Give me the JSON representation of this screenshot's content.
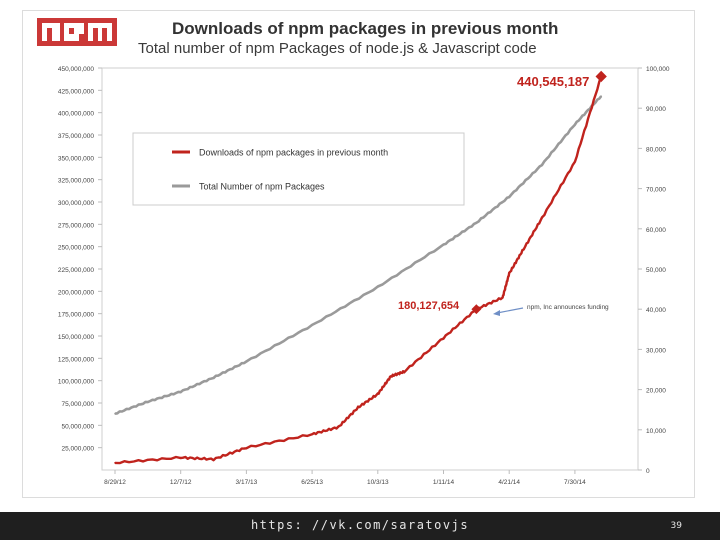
{
  "slide": {
    "logo_text": "npm",
    "url": "https: //vk.com/saratovjs",
    "page_number": "39"
  },
  "colors": {
    "downloads": "#c0231d",
    "packages": "#9a9a9a",
    "logo": "#cb3837",
    "annotation": "#6f8fc6"
  },
  "chart_data": {
    "type": "line",
    "title": "Downloads of npm packages in previous month",
    "subtitle": "Total number of npm Packages of node.js & Javascript code",
    "x_tick_labels": [
      "8/29/12",
      "12/7/12",
      "3/17/13",
      "6/25/13",
      "10/3/13",
      "1/11/14",
      "4/21/14",
      "7/30/14"
    ],
    "left_axis": {
      "ylim": [
        0,
        450000000
      ],
      "tick_labels": [
        "450,000,000",
        "425,000,000",
        "400,000,000",
        "375,000,000",
        "350,000,000",
        "325,000,000",
        "300,000,000",
        "275,000,000",
        "250,000,000",
        "225,000,000",
        "200,000,000",
        "175,000,000",
        "150,000,000",
        "125,000,000",
        "100,000,000",
        "75,000,000",
        "50,000,000",
        "25,000,000"
      ]
    },
    "right_axis": {
      "ylim": [
        0,
        100000
      ],
      "tick_labels": [
        "100,000",
        "90,000",
        "80,000",
        "70,000",
        "60,000",
        "50,000",
        "40,000",
        "30,000",
        "20,000",
        "10,000",
        "0"
      ]
    },
    "legend": {
      "position": "upper-left",
      "entries": [
        "Downloads of npm packages in previous month",
        "Total Number of npm Packages"
      ]
    },
    "series": [
      {
        "name": "Downloads of npm packages in previous month",
        "axis": "left",
        "x_index": [
          0,
          1,
          1.5,
          2,
          3,
          3.4,
          3.7,
          4,
          4.2,
          4.4,
          5,
          5.5,
          5.9,
          6,
          6.2,
          6.5,
          7,
          7.4
        ],
        "values": [
          8000000,
          14000000,
          12000000,
          25000000,
          40000000,
          48000000,
          70000000,
          85000000,
          105000000,
          110000000,
          148000000,
          180000000,
          193000000,
          220000000,
          245000000,
          282000000,
          345000000,
          440545187
        ]
      },
      {
        "name": "Total Number of npm Packages",
        "axis": "right",
        "x_index": [
          0,
          0.5,
          1,
          1.5,
          2,
          3,
          4,
          5,
          5.5,
          6,
          6.5,
          7,
          7.4
        ],
        "values": [
          14000,
          17000,
          19500,
          23000,
          27000,
          36000,
          45500,
          56000,
          61500,
          68000,
          76000,
          86000,
          93000
        ]
      }
    ],
    "annotations": {
      "peak_value": "440,545,187",
      "funding_value": "180,127,654",
      "funding_note": "npm, Inc announces funding"
    }
  }
}
